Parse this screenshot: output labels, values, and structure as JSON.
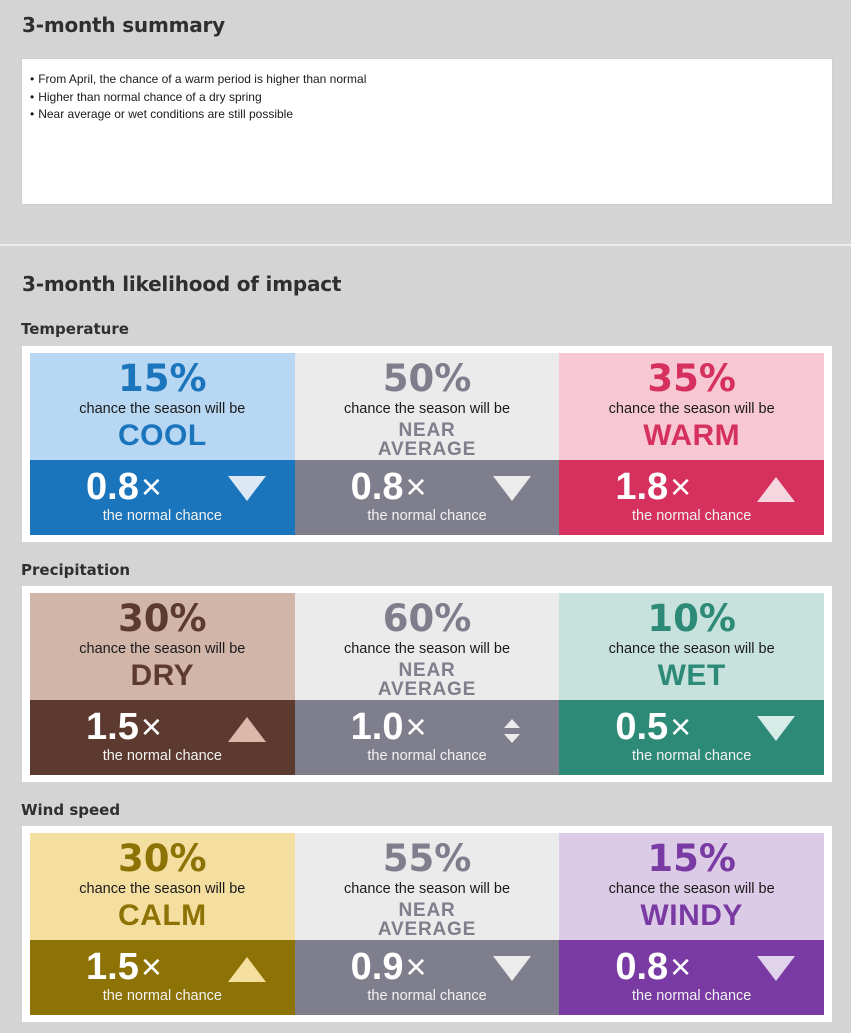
{
  "summary": {
    "title": "3-month summary",
    "bullets": [
      "From April, the chance of a warm period is higher than normal",
      "Higher than normal chance of a dry spring",
      "Near average or wet conditions are still possible"
    ]
  },
  "impact": {
    "title": "3-month likelihood of impact",
    "chance_text": "chance the season will be",
    "normal_text": "the normal chance",
    "mult_symbol": "×",
    "categories": [
      {
        "label": "Temperature",
        "cells": [
          {
            "pct": "15%",
            "word": "COOL",
            "mult": "0.8",
            "trend": "down",
            "top_bg": "#b7d7f3",
            "accent": "#1a75bc",
            "bot_bg": "#1a75bc",
            "arrow": "#dce9f5"
          },
          {
            "pct": "50%",
            "word": "NEAR AVERAGE",
            "mult": "0.8",
            "trend": "down",
            "top_bg": "#ebebeb",
            "accent": "#7f7e8c",
            "bot_bg": "#7f7e8c",
            "arrow": "#ececec"
          },
          {
            "pct": "35%",
            "word": "WARM",
            "mult": "1.8",
            "trend": "up",
            "top_bg": "#f7c7d3",
            "accent": "#d6305f",
            "bot_bg": "#d6305f",
            "arrow": "#f6d7df"
          }
        ]
      },
      {
        "label": "Precipitation",
        "cells": [
          {
            "pct": "30%",
            "word": "DRY",
            "mult": "1.5",
            "trend": "up",
            "top_bg": "#d2b5a9",
            "accent": "#5d3a30",
            "bot_bg": "#5d3a30",
            "arrow": "#dab9ab"
          },
          {
            "pct": "60%",
            "word": "NEAR AVERAGE",
            "mult": "1.0",
            "trend": "updown",
            "top_bg": "#ebebeb",
            "accent": "#7f7e8c",
            "bot_bg": "#7f7e8c",
            "arrow": "#ececec"
          },
          {
            "pct": "10%",
            "word": "WET",
            "mult": "0.5",
            "trend": "down",
            "top_bg": "#c7e2dd",
            "accent": "#2d8a77",
            "bot_bg": "#2d8a77",
            "arrow": "#d6ece7"
          }
        ]
      },
      {
        "label": "Wind speed",
        "cells": [
          {
            "pct": "30%",
            "word": "CALM",
            "mult": "1.5",
            "trend": "up",
            "top_bg": "#f5dfa0",
            "accent": "#8d7205",
            "bot_bg": "#8d7205",
            "arrow": "#f5df9e"
          },
          {
            "pct": "55%",
            "word": "NEAR AVERAGE",
            "mult": "0.9",
            "trend": "down",
            "top_bg": "#ebebeb",
            "accent": "#7f7e8c",
            "bot_bg": "#7f7e8c",
            "arrow": "#ececec"
          },
          {
            "pct": "15%",
            "word": "WINDY",
            "mult": "0.8",
            "trend": "down",
            "top_bg": "#dccbe6",
            "accent": "#7a3aa3",
            "bot_bg": "#7a3aa3",
            "arrow": "#e2d3ec"
          }
        ]
      }
    ]
  }
}
